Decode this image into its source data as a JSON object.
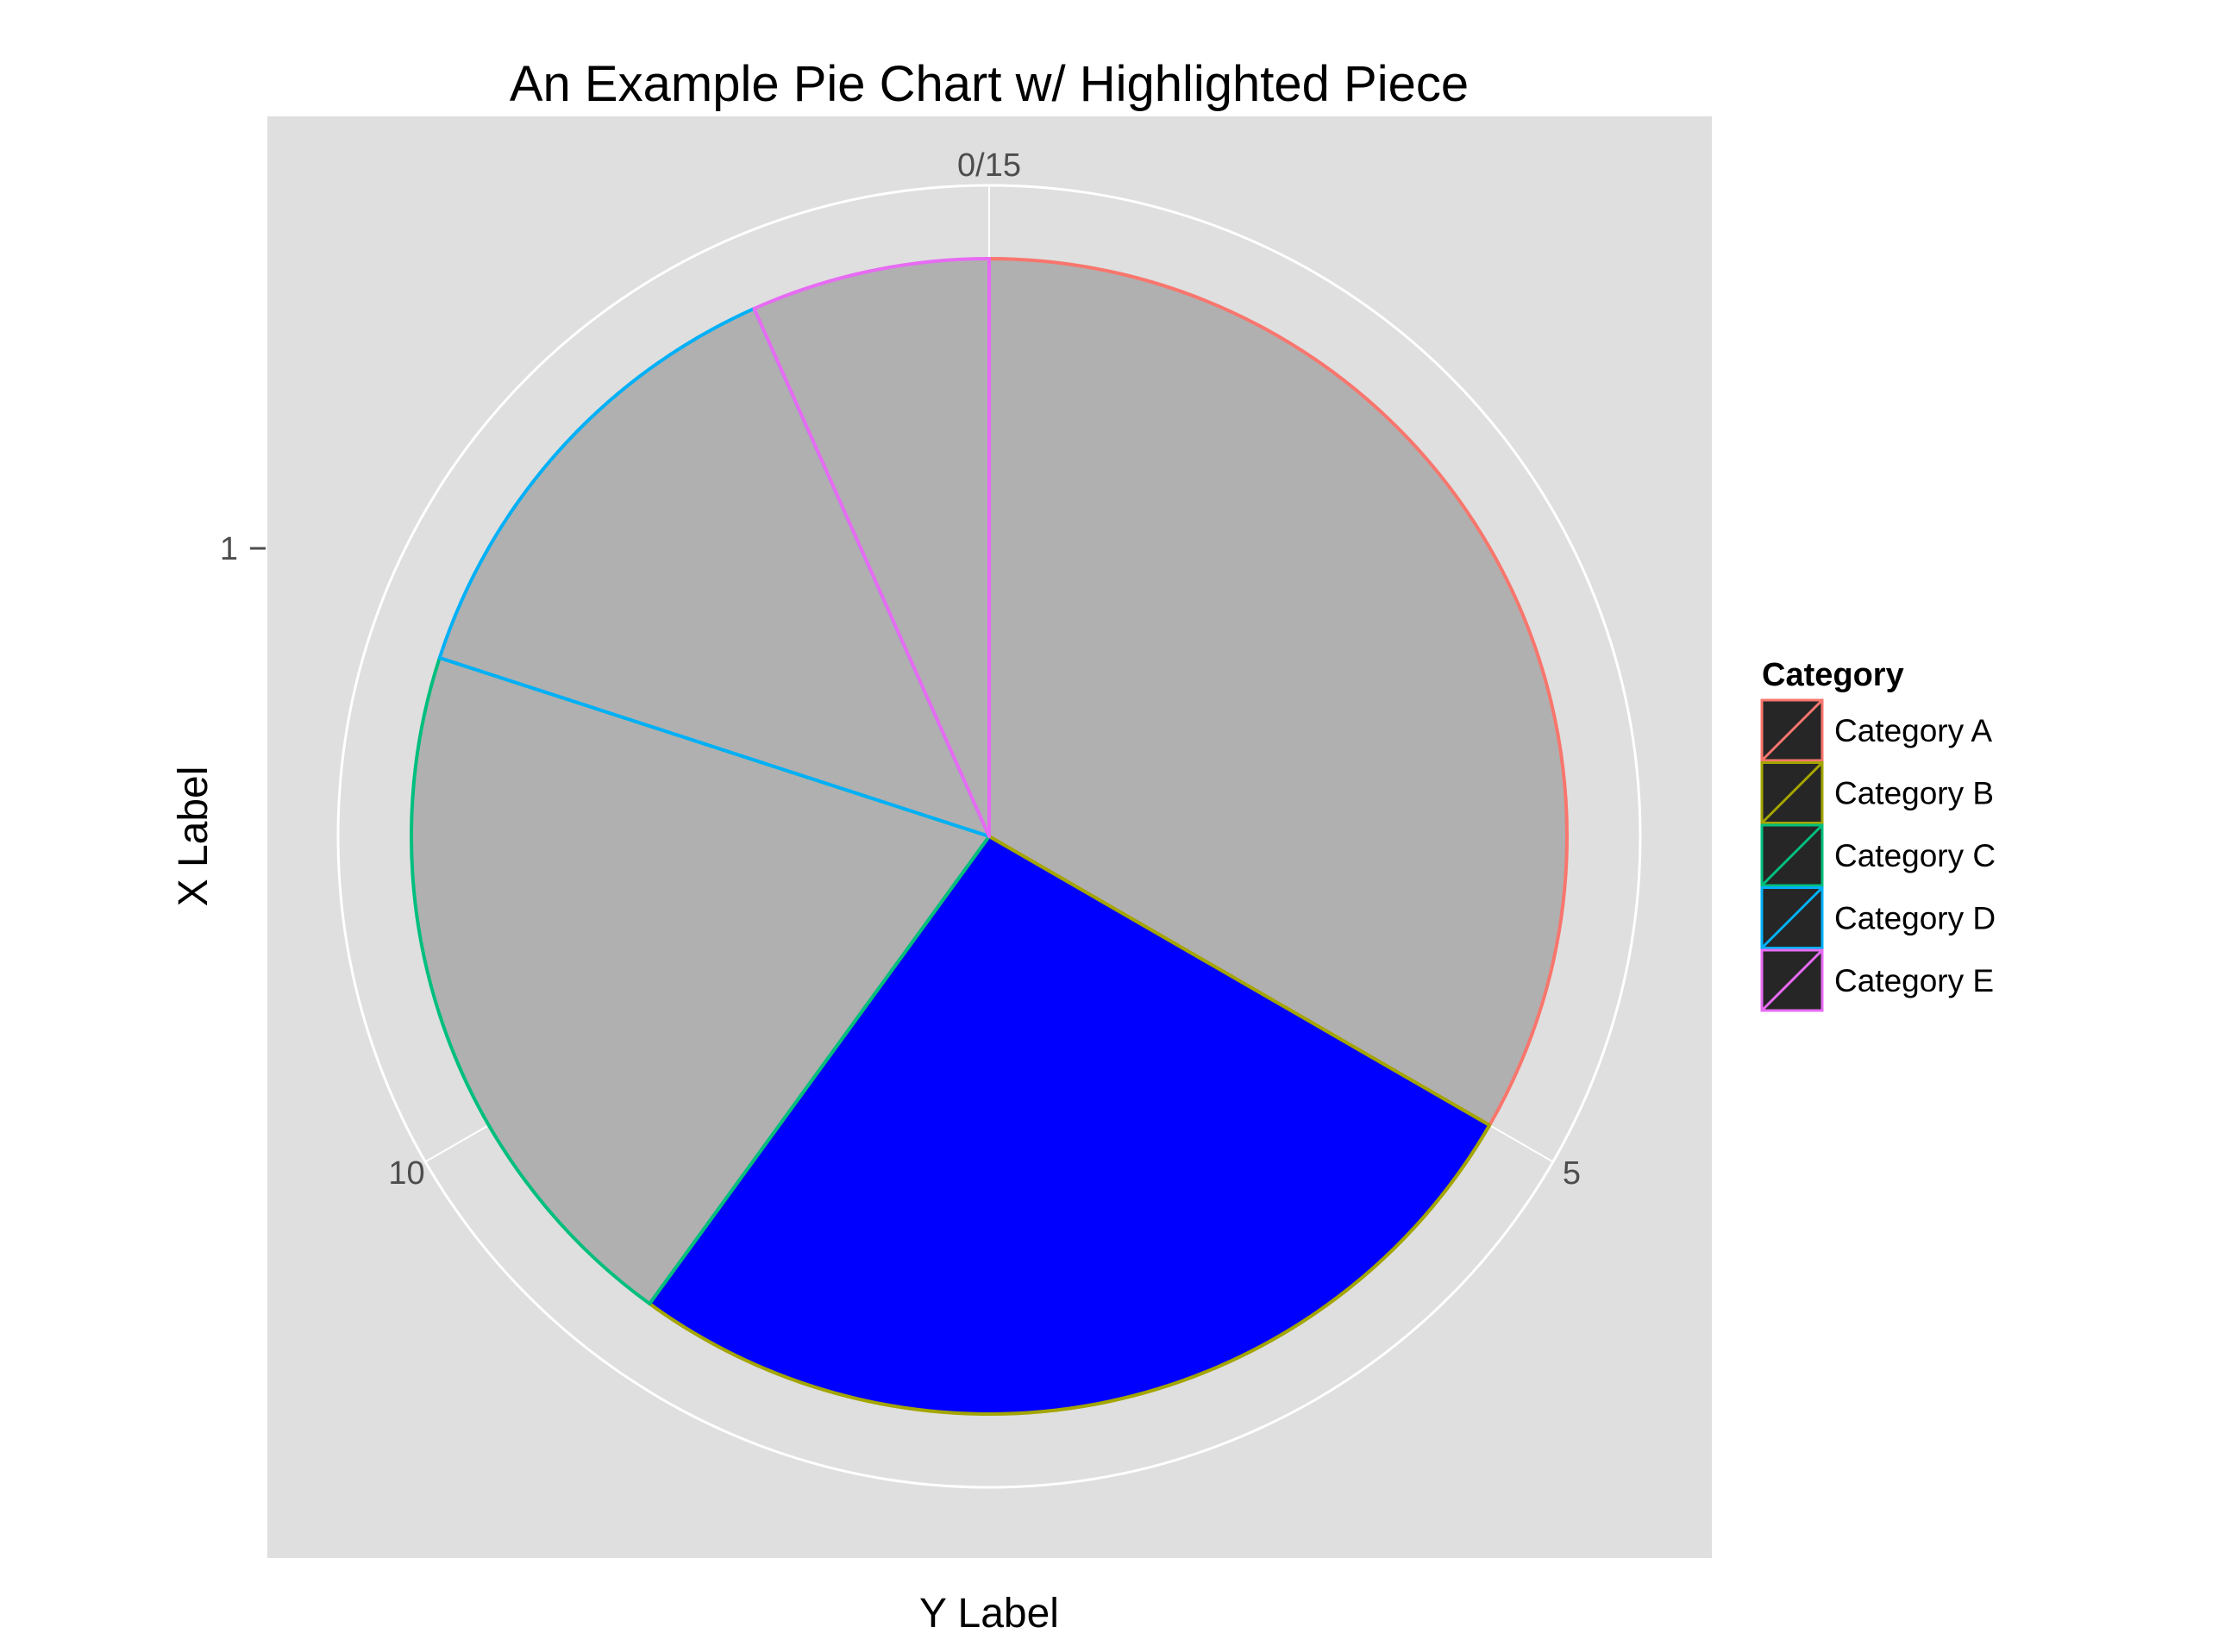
{
  "chart_data": {
    "type": "pie",
    "title": "An Example Pie Chart w/ Highlighted Piece",
    "xlabel": "X Label",
    "ylabel": "Y Label",
    "x_tick_label": "1",
    "theta_tick_labels": [
      "0/15",
      "5",
      "10"
    ],
    "total": 15,
    "legend": {
      "title": "Category",
      "position": "right"
    },
    "categories": [
      "Category A",
      "Category B",
      "Category C",
      "Category D",
      "Category E"
    ],
    "values": [
      5,
      4,
      3,
      2,
      1
    ],
    "outline_colors": [
      "#F8766D",
      "#A3A500",
      "#00BF7D",
      "#00B0F6",
      "#E76BF3"
    ],
    "fill_colors": [
      "#B0B0B0",
      "#0000FF",
      "#B0B0B0",
      "#B0B0B0",
      "#B0B0B0"
    ],
    "highlighted": "Category B",
    "panel_background": "#DFDFDF",
    "grid": true
  }
}
